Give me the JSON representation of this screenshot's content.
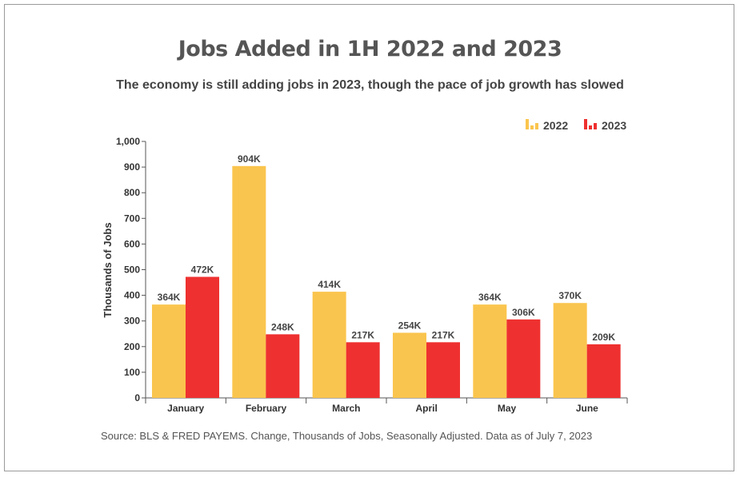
{
  "chart_data": {
    "type": "bar",
    "title": "Jobs Added in 1H 2022 and 2023",
    "subtitle": "The economy is still adding jobs in 2023, though the pace of job growth has slowed",
    "xlabel": "",
    "ylabel": "Thousands of Jobs",
    "ylim": [
      0,
      1000
    ],
    "yticks": [
      "0",
      "100",
      "200",
      "300",
      "400",
      "500",
      "600",
      "700",
      "800",
      "900",
      "1,000"
    ],
    "categories": [
      "January",
      "February",
      "March",
      "April",
      "May",
      "June"
    ],
    "series": [
      {
        "name": "2022",
        "color": "#FAC54E",
        "values": [
          364,
          904,
          414,
          254,
          364,
          370
        ],
        "labels": [
          "364K",
          "904K",
          "414K",
          "254K",
          "364K",
          "370K"
        ]
      },
      {
        "name": "2023",
        "color": "#EE3130",
        "values": [
          472,
          248,
          217,
          217,
          306,
          209
        ],
        "labels": [
          "472K",
          "248K",
          "217K",
          "217K",
          "306K",
          "209K"
        ]
      }
    ],
    "legend": "top-right",
    "grid": false,
    "source": "Source: BLS & FRED PAYEMS. Change, Thousands of Jobs, Seasonally Adjusted. Data as of July 7, 2023"
  }
}
